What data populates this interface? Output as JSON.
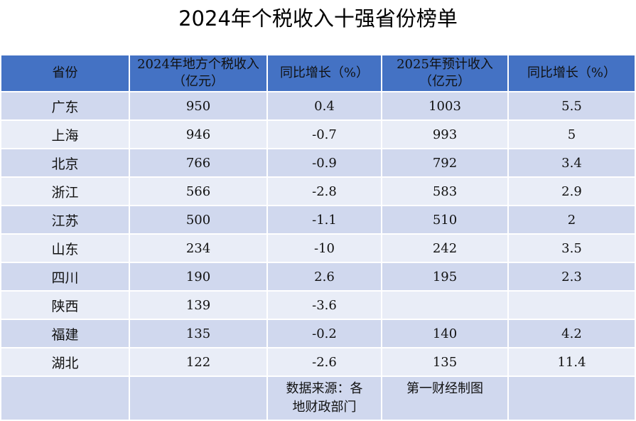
{
  "title": "2024年个税收入十强省份榜单",
  "header": {
    "col0": "省份",
    "col1_line1": "2024年地方个税收入",
    "col1_line2": "（亿元）",
    "col2": "同比增长（%）",
    "col3_line1": "2025年预计收入",
    "col3_line2": "（亿元）",
    "col4": "同比增长（%）"
  },
  "rows": [
    {
      "province": "广东",
      "revenue_2024": "950",
      "growth_2024": "0.4",
      "forecast_2025": "1003",
      "growth_2025": "5.5"
    },
    {
      "province": "上海",
      "revenue_2024": "946",
      "growth_2024": "-0.7",
      "forecast_2025": "993",
      "growth_2025": "5"
    },
    {
      "province": "北京",
      "revenue_2024": "766",
      "growth_2024": "-0.9",
      "forecast_2025": "792",
      "growth_2025": "3.4"
    },
    {
      "province": "浙江",
      "revenue_2024": "566",
      "growth_2024": "-2.8",
      "forecast_2025": "583",
      "growth_2025": "2.9"
    },
    {
      "province": "江苏",
      "revenue_2024": "500",
      "growth_2024": "-1.1",
      "forecast_2025": "510",
      "growth_2025": "2"
    },
    {
      "province": "山东",
      "revenue_2024": "234",
      "growth_2024": "-10",
      "forecast_2025": "242",
      "growth_2025": "3.5"
    },
    {
      "province": "四川",
      "revenue_2024": "190",
      "growth_2024": "2.6",
      "forecast_2025": "195",
      "growth_2025": "2.3"
    },
    {
      "province": "陕西",
      "revenue_2024": "139",
      "growth_2024": "-3.6",
      "forecast_2025": "",
      "growth_2025": ""
    },
    {
      "province": "福建",
      "revenue_2024": "135",
      "growth_2024": "-0.2",
      "forecast_2025": "140",
      "growth_2025": "4.2"
    },
    {
      "province": "湖北",
      "revenue_2024": "122",
      "growth_2024": "-2.6",
      "forecast_2025": "135",
      "growth_2025": "11.4"
    }
  ],
  "footer": {
    "source_line1": "数据来源：各",
    "source_line2": "地财政部门",
    "credit": "第一财经制图"
  },
  "colors": {
    "header_bg": "#4472c4",
    "row_dark": "#d0d8ee",
    "row_light": "#e9edf7"
  }
}
